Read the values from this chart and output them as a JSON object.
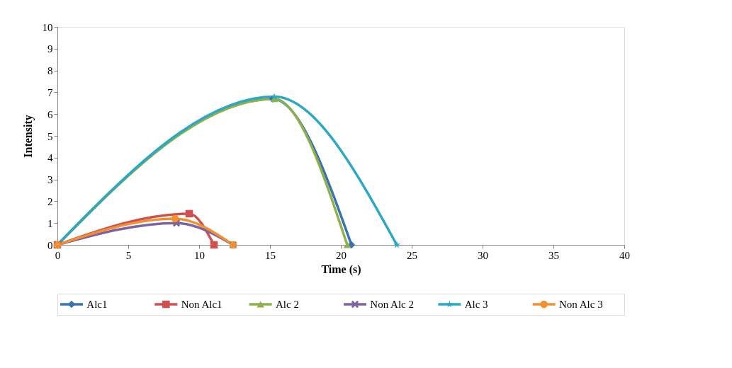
{
  "chart_data": {
    "type": "line",
    "xlabel": "Time (s)",
    "ylabel": "Intensity",
    "xlim": [
      0,
      40
    ],
    "xticks": [
      0,
      5,
      10,
      15,
      20,
      25,
      30,
      35,
      40
    ],
    "ylim": [
      0,
      10
    ],
    "yticks": [
      0,
      1,
      2,
      3,
      4,
      5,
      6,
      7,
      8,
      9,
      10
    ],
    "grid": false,
    "legend": "bottom",
    "series": [
      {
        "name": "Alc1",
        "color": "#3a72b0",
        "marker": "diamond",
        "x": [
          0,
          15.2,
          20.75
        ],
        "values": [
          0,
          6.7,
          0
        ]
      },
      {
        "name": "Non Alc1",
        "color": "#d0504c",
        "marker": "square",
        "x": [
          0,
          9.3,
          11.05
        ],
        "values": [
          0,
          1.43,
          0
        ]
      },
      {
        "name": "Alc 2",
        "color": "#8db14b",
        "marker": "triangle",
        "x": [
          0,
          15.3,
          20.45
        ],
        "values": [
          0,
          6.7,
          0
        ]
      },
      {
        "name": "Non Alc 2",
        "color": "#7f62a0",
        "marker": "cross",
        "x": [
          0,
          8.4,
          12.4
        ],
        "values": [
          0,
          1.0,
          0
        ]
      },
      {
        "name": "Alc 3",
        "color": "#2ca8c2",
        "marker": "star",
        "x": [
          0,
          15.3,
          23.95
        ],
        "values": [
          0,
          6.8,
          0
        ]
      },
      {
        "name": "Non Alc 3",
        "color": "#f2902f",
        "marker": "circle",
        "x": [
          0,
          8.3,
          12.4
        ],
        "values": [
          0,
          1.2,
          0
        ]
      }
    ]
  }
}
